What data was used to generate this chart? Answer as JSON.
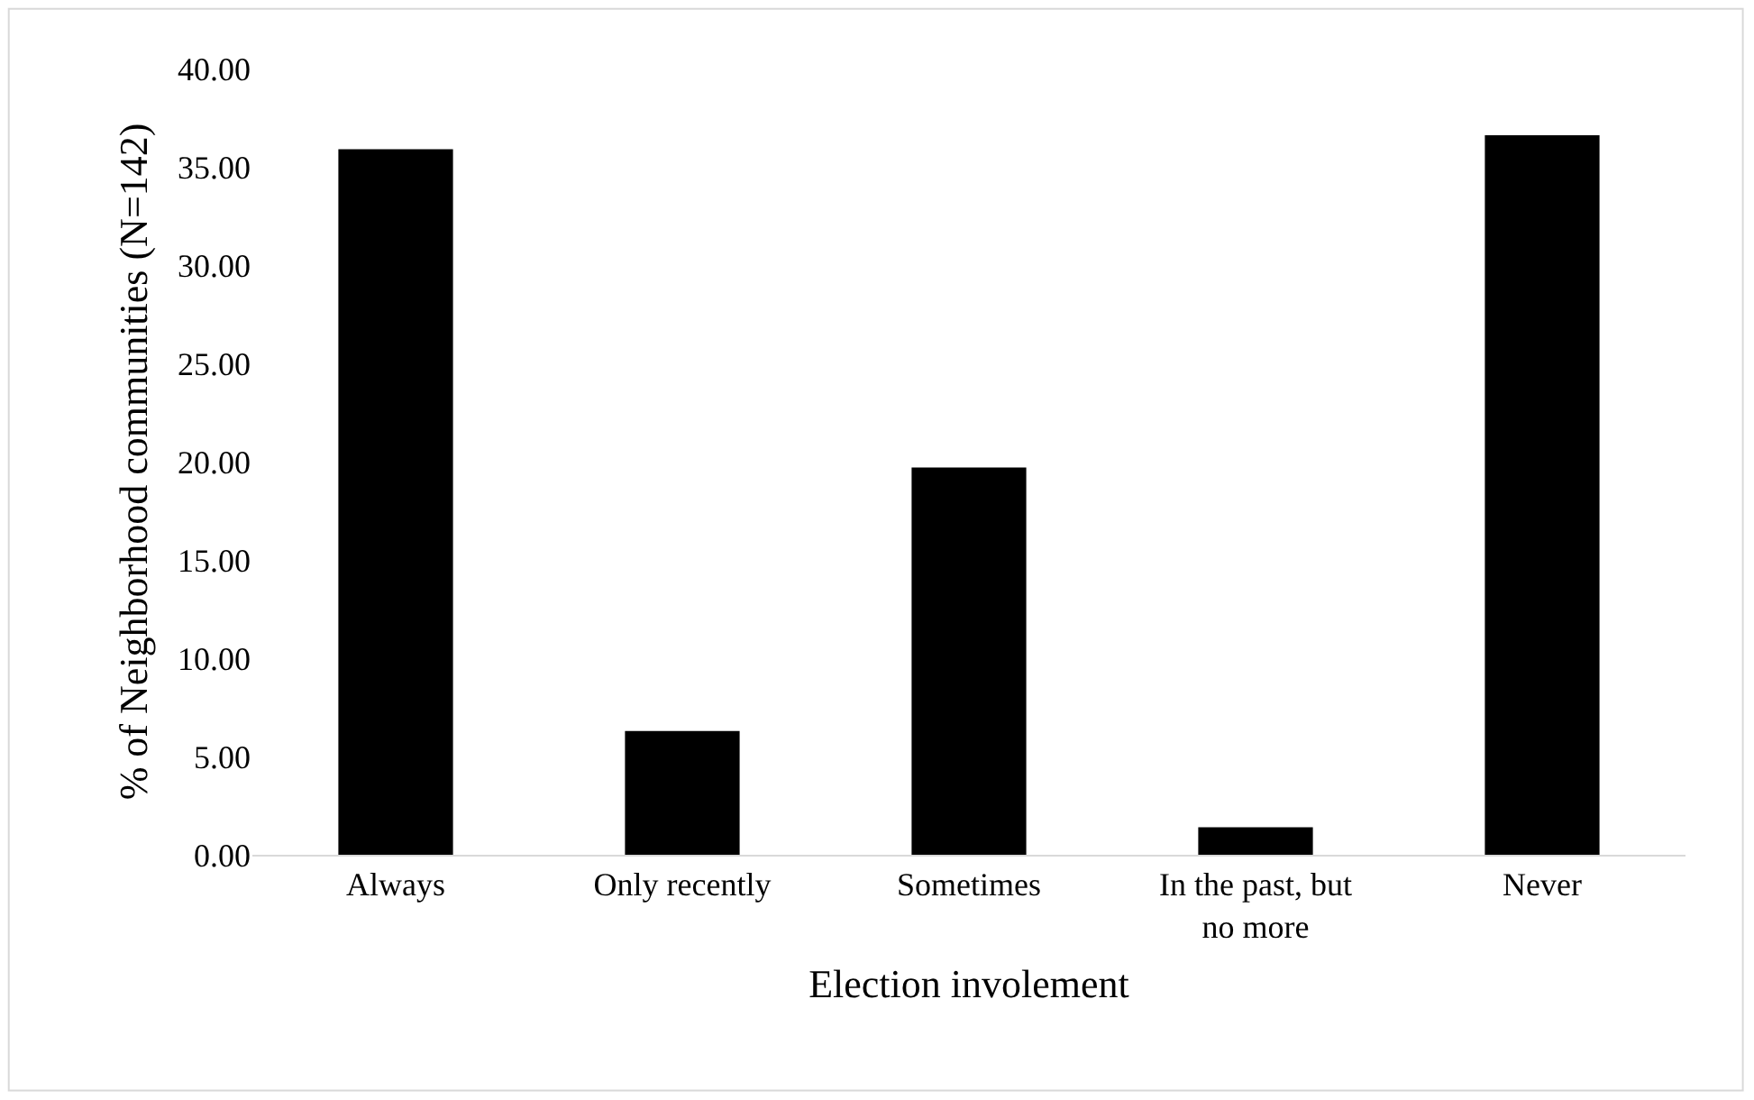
{
  "chart_data": {
    "type": "bar",
    "xlabel": "Election involement",
    "ylabel": "% of Neighborhood communities (N=142)",
    "categories": [
      "Always",
      "Only recently",
      "Sometimes",
      "In the past, but no more",
      "Never"
    ],
    "values": [
      35.9,
      6.3,
      19.7,
      1.4,
      36.6
    ],
    "color": "#000000",
    "ylim": [
      0,
      40
    ],
    "yticks": [
      {
        "value": 0,
        "label": "0.00"
      },
      {
        "value": 5,
        "label": "5.00"
      },
      {
        "value": 10,
        "label": "10.00"
      },
      {
        "value": 15,
        "label": "15.00"
      },
      {
        "value": 20,
        "label": "20.00"
      },
      {
        "value": 25,
        "label": "25.00"
      },
      {
        "value": 30,
        "label": "30.00"
      },
      {
        "value": 35,
        "label": "35.00"
      },
      {
        "value": 40,
        "label": "40.00"
      }
    ],
    "grid": false
  }
}
